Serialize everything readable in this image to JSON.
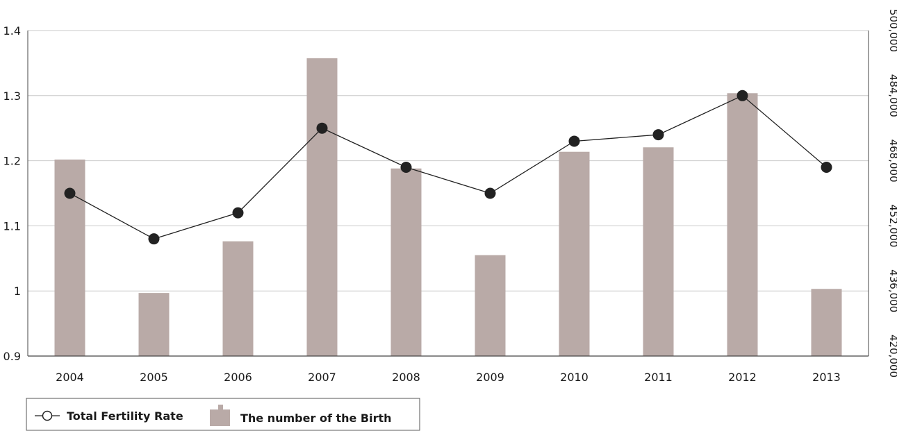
{
  "chart_data": {
    "type": "bar+line",
    "categories": [
      "2004",
      "2005",
      "2006",
      "2007",
      "2008",
      "2009",
      "2010",
      "2011",
      "2012",
      "2013"
    ],
    "series": [
      {
        "name": "Total Fertility Rate",
        "type": "line",
        "axis": "left",
        "values": [
          1.15,
          1.08,
          1.12,
          1.25,
          1.19,
          1.15,
          1.23,
          1.24,
          1.3,
          1.19
        ]
      },
      {
        "name": "The number of the Birth",
        "type": "bar",
        "axis": "right",
        "values": [
          468300,
          435500,
          448200,
          493200,
          466100,
          444800,
          470200,
          471300,
          484600,
          436500
        ]
      }
    ],
    "y_left": {
      "ylim": [
        0.9,
        1.4
      ],
      "ticks": [
        "0.9",
        "1",
        "1.1",
        "1.2",
        "1.3",
        "1.4"
      ]
    },
    "y_right": {
      "ylim": [
        420000,
        500000
      ],
      "ticks": [
        "420,000",
        "436,000",
        "452,000",
        "468,000",
        "484,000",
        "500,000"
      ]
    },
    "grid": true,
    "legend_position": "bottom-left",
    "colors": {
      "bar": "#b9aaa7",
      "line": "#222222",
      "marker": "#222222",
      "grid": "#c8c8c8"
    }
  }
}
